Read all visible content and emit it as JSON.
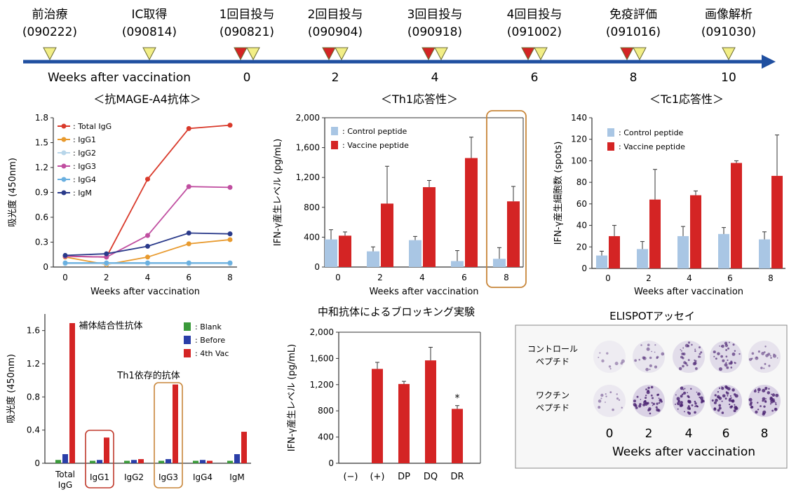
{
  "timeline": {
    "events": [
      {
        "label": "前治療",
        "date": "(090222)",
        "markers": [
          "yellow"
        ]
      },
      {
        "label": "IC取得",
        "date": "(090814)",
        "markers": [
          "yellow"
        ]
      },
      {
        "label": "1回目投与",
        "date": "(090821)",
        "markers": [
          "red",
          "yellow"
        ]
      },
      {
        "label": "2回目投与",
        "date": "(090904)",
        "markers": [
          "red",
          "yellow"
        ]
      },
      {
        "label": "3回目投与",
        "date": "(090918)",
        "markers": [
          "red",
          "yellow"
        ]
      },
      {
        "label": "4回目投与",
        "date": "(091002)",
        "markers": [
          "red",
          "yellow"
        ]
      },
      {
        "label": "免疫評価",
        "date": "(091016)",
        "markers": [
          "red",
          "yellow"
        ]
      },
      {
        "label": "画像解析",
        "date": "(091030)",
        "markers": [
          "yellow"
        ]
      }
    ],
    "axis_label": "Weeks after vaccination",
    "week_ticks": [
      "0",
      "2",
      "4",
      "6",
      "8",
      "10"
    ]
  },
  "colors": {
    "timeline_arrow": "#1f4fa0",
    "vaccine_red": "#d42424",
    "control_blue": "#a9c6e4",
    "marker_yellow": "#f2ee86",
    "highlight_orange": "#c8863a",
    "blank_green": "#3a9a3a",
    "before_blue": "#2a3ea8"
  },
  "chart_data": [
    {
      "id": "antibody",
      "type": "line",
      "title": "＜抗MAGE-A4抗体＞",
      "xlabel": "Weeks after vaccination",
      "ylabel": "吸光度 (450nm)",
      "x": [
        0,
        2,
        4,
        6,
        8
      ],
      "xticks": [
        "0",
        "2",
        "4",
        "6",
        "8"
      ],
      "ylim": [
        0,
        1.8
      ],
      "yticks": [
        "0",
        "0.3",
        "0.6",
        "0.9",
        "1.2",
        "1.5",
        "1.8"
      ],
      "legend_position": "top-left",
      "series": [
        {
          "name": ": Total IgG",
          "color": "#d93a2b",
          "values": [
            0.13,
            0.12,
            1.06,
            1.67,
            1.71
          ]
        },
        {
          "name": ": IgG1",
          "color": "#e89a2e",
          "values": [
            0.12,
            0.03,
            0.12,
            0.28,
            0.33
          ]
        },
        {
          "name": ": IgG2",
          "color": "#b8d6ea",
          "values": [
            0.04,
            0.04,
            0.04,
            0.04,
            0.04
          ]
        },
        {
          "name": ": IgG3",
          "color": "#c04ea0",
          "values": [
            0.13,
            0.12,
            0.38,
            0.97,
            0.96
          ]
        },
        {
          "name": ": IgG4",
          "color": "#6ab0e0",
          "values": [
            0.05,
            0.05,
            0.05,
            0.05,
            0.05
          ]
        },
        {
          "name": ": IgM",
          "color": "#2a3a8a",
          "values": [
            0.14,
            0.16,
            0.25,
            0.41,
            0.4
          ]
        }
      ]
    },
    {
      "id": "th1",
      "type": "bar",
      "title": "＜Th1応答性＞",
      "xlabel": "Weeks after vaccination",
      "ylabel": "IFN-γ産生レベル (pg/mL)",
      "categories": [
        "0",
        "2",
        "4",
        "6",
        "8"
      ],
      "ylim": [
        0,
        2000
      ],
      "yticks": [
        "0",
        "400",
        "800",
        "1,200",
        "1,600",
        "2,000"
      ],
      "legend_position": "top-left",
      "highlighted_category": "8",
      "series": [
        {
          "name": ": Control peptide",
          "color": "#a9c6e4",
          "values": [
            370,
            210,
            360,
            80,
            110
          ],
          "errors": [
            130,
            60,
            50,
            140,
            150
          ]
        },
        {
          "name": ": Vaccine peptide",
          "color": "#d42424",
          "values": [
            420,
            850,
            1070,
            1460,
            880
          ],
          "errors": [
            50,
            500,
            90,
            280,
            200
          ]
        }
      ]
    },
    {
      "id": "tc1",
      "type": "bar",
      "title": "＜Tc1応答性＞",
      "xlabel": "Weeks after vaccination",
      "ylabel": "IFN-γ産生細胞数 (spots)",
      "categories": [
        "0",
        "2",
        "4",
        "6",
        "8"
      ],
      "ylim": [
        0,
        140
      ],
      "yticks": [
        "0",
        "20",
        "40",
        "60",
        "80",
        "100",
        "120",
        "140"
      ],
      "legend_position": "top-left",
      "series": [
        {
          "name": ": Control peptide",
          "color": "#a9c6e4",
          "values": [
            12,
            18,
            30,
            32,
            27
          ],
          "errors": [
            4,
            7,
            9,
            6,
            7
          ]
        },
        {
          "name": ": Vaccine peptide",
          "color": "#d42424",
          "values": [
            30,
            64,
            68,
            98,
            86
          ],
          "errors": [
            10,
            28,
            4,
            2,
            38
          ]
        }
      ]
    },
    {
      "id": "isotype",
      "type": "bar",
      "title": "",
      "xlabel": "",
      "ylabel": "吸光度 (450nm)",
      "categories": [
        "Total IgG",
        "IgG1",
        "IgG2",
        "IgG3",
        "IgG4",
        "IgM"
      ],
      "ylim": [
        0,
        1.8
      ],
      "yticks": [
        "0",
        "0.4",
        "0.8",
        "1.2",
        "1.6"
      ],
      "legend_position": "top-right",
      "highlighted_categories": [
        "IgG1",
        "IgG3"
      ],
      "annotations": [
        "補体結合性抗体",
        "Th1依存的抗体"
      ],
      "series": [
        {
          "name": ": Blank",
          "color": "#3a9a3a",
          "values": [
            0.04,
            0.03,
            0.03,
            0.03,
            0.03,
            0.03
          ]
        },
        {
          "name": ": Before",
          "color": "#2a3ea8",
          "values": [
            0.11,
            0.04,
            0.04,
            0.05,
            0.04,
            0.11
          ]
        },
        {
          "name": ": 4th Vac",
          "color": "#d42424",
          "values": [
            1.69,
            0.31,
            0.05,
            0.95,
            0.03,
            0.38
          ]
        }
      ]
    },
    {
      "id": "blocking",
      "type": "bar",
      "title": "中和抗体によるブロッキング実験",
      "xlabel": "",
      "ylabel": "IFN-γ産生レベル (pg/mL)",
      "categories": [
        "(−)",
        "(+)",
        "DP",
        "DQ",
        "DR"
      ],
      "ylim": [
        0,
        2000
      ],
      "yticks": [
        "0",
        "400",
        "800",
        "1,200",
        "1,600",
        "2,000"
      ],
      "significance": {
        "category": "DR",
        "mark": "*"
      },
      "series": [
        {
          "name": "",
          "color": "#d42424",
          "values": [
            0,
            1440,
            1210,
            1570,
            830
          ],
          "errors": [
            0,
            100,
            40,
            200,
            50
          ]
        }
      ]
    }
  ],
  "elispot": {
    "title": "ELISPOTアッセイ",
    "row_labels": [
      [
        "コントロール",
        "ペプチド"
      ],
      [
        "ワクチン",
        "ペプチド"
      ]
    ],
    "columns": [
      "0",
      "2",
      "4",
      "6",
      "8"
    ],
    "xlabel": "Weeks after vaccination",
    "control_levels": [
      0.1,
      0.3,
      0.55,
      0.6,
      0.35
    ],
    "vaccine_levels": [
      0.2,
      0.85,
      0.9,
      0.9,
      0.85
    ]
  }
}
